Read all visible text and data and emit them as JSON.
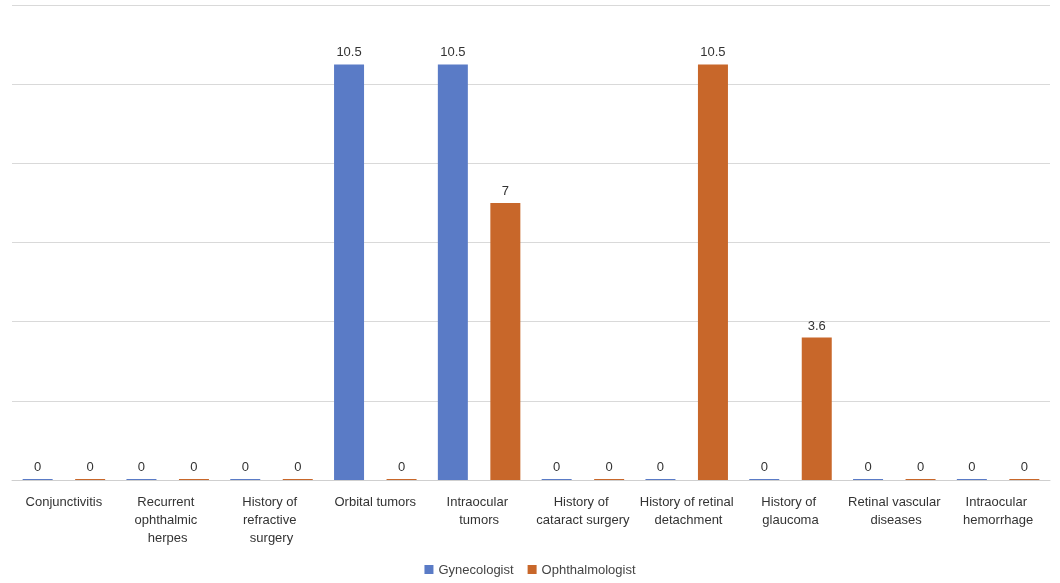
{
  "chart_data": {
    "type": "bar",
    "categories": [
      "Conjunctivitis",
      "Recurrent ophthalmic herpes",
      "History of refractive surgery",
      "Orbital tumors",
      "Intraocular tumors",
      "History of cataract surgery",
      "History of retinal detachment",
      "History of glaucoma",
      "Retinal vascular diseases",
      "Intraocular hemorrhage"
    ],
    "series": [
      {
        "name": "Gynecologist",
        "color": "#5a7bc6",
        "values": [
          0,
          0,
          0,
          10.5,
          10.5,
          0,
          0,
          0,
          0,
          0
        ]
      },
      {
        "name": "Ophthalmologist",
        "color": "#c8672a",
        "values": [
          0,
          0,
          0,
          0,
          7,
          0,
          10.5,
          3.6,
          0,
          0
        ]
      }
    ],
    "ylim": [
      0,
      12
    ],
    "yticks": [
      {
        "value": 0,
        "label": null
      },
      {
        "value": 2,
        "label": null
      },
      {
        "value": 4,
        "label": null
      },
      {
        "value": 6,
        "label": null
      },
      {
        "value": 8,
        "label": null
      },
      {
        "value": 10,
        "label": null
      },
      {
        "value": 12,
        "label": null
      }
    ],
    "grid": "y",
    "legend": "bottom",
    "data_labels": true
  }
}
